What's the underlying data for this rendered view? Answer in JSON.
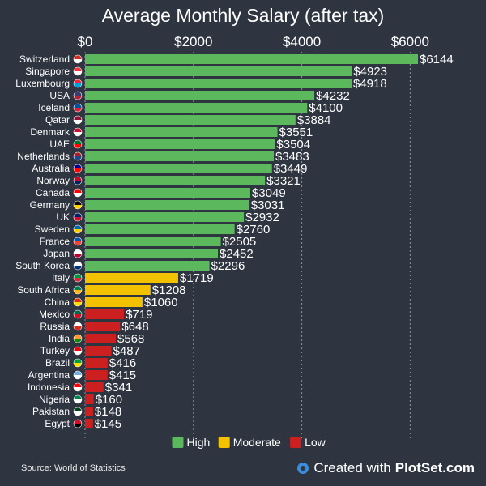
{
  "chart_data": {
    "type": "bar",
    "orientation": "horizontal",
    "title": "Average Monthly Salary (after tax)",
    "xlim": [
      0,
      6144
    ],
    "x_ticks": [
      0,
      2000,
      4000,
      6000
    ],
    "x_tick_labels": [
      "$0",
      "$2000",
      "$4000",
      "$6000"
    ],
    "value_prefix": "$",
    "grid": true,
    "legend_position": "bottom-center",
    "groups": [
      {
        "key": "high",
        "label": "High",
        "color": "#5cb85c"
      },
      {
        "key": "moderate",
        "label": "Moderate",
        "color": "#f2c200"
      },
      {
        "key": "low",
        "label": "Low",
        "color": "#cc1f1f"
      }
    ],
    "categories": [
      "Switzerland",
      "Singapore",
      "Luxembourg",
      "USA",
      "Iceland",
      "Qatar",
      "Denmark",
      "UAE",
      "Netherlands",
      "Australia",
      "Norway",
      "Canada",
      "Germany",
      "UK",
      "Sweden",
      "France",
      "Japan",
      "South Korea",
      "Italy",
      "South Africa",
      "China",
      "Mexico",
      "Russia",
      "India",
      "Turkey",
      "Brazil",
      "Argentina",
      "Indonesia",
      "Nigeria",
      "Pakistan",
      "Egypt"
    ],
    "values": [
      6144,
      4923,
      4918,
      4232,
      4100,
      3884,
      3551,
      3504,
      3483,
      3449,
      3321,
      3049,
      3031,
      2932,
      2760,
      2505,
      2452,
      2296,
      1719,
      1208,
      1060,
      719,
      648,
      568,
      487,
      416,
      415,
      341,
      160,
      148,
      145
    ],
    "group_of": [
      "high",
      "high",
      "high",
      "high",
      "high",
      "high",
      "high",
      "high",
      "high",
      "high",
      "high",
      "high",
      "high",
      "high",
      "high",
      "high",
      "high",
      "high",
      "moderate",
      "moderate",
      "moderate",
      "low",
      "low",
      "low",
      "low",
      "low",
      "low",
      "low",
      "low",
      "low",
      "low"
    ],
    "flag_colors": [
      [
        "#d52b1e",
        "#ffffff"
      ],
      [
        "#ef3340",
        "#ffffff"
      ],
      [
        "#ed2939",
        "#00a1de"
      ],
      [
        "#3c3b6e",
        "#b22234"
      ],
      [
        "#02529c",
        "#dc1e35"
      ],
      [
        "#8a1538",
        "#ffffff"
      ],
      [
        "#c8102e",
        "#ffffff"
      ],
      [
        "#00732f",
        "#ff0000"
      ],
      [
        "#ae1c28",
        "#21468b"
      ],
      [
        "#00008b",
        "#ff0000"
      ],
      [
        "#ba0c2f",
        "#00205b"
      ],
      [
        "#ff0000",
        "#ffffff"
      ],
      [
        "#000000",
        "#ffce00"
      ],
      [
        "#012169",
        "#c8102e"
      ],
      [
        "#006aa7",
        "#fecc00"
      ],
      [
        "#0055a4",
        "#ef4135"
      ],
      [
        "#ffffff",
        "#bc002d"
      ],
      [
        "#ffffff",
        "#003478"
      ],
      [
        "#009246",
        "#ce2b37"
      ],
      [
        "#007a4d",
        "#ffb612"
      ],
      [
        "#de2910",
        "#ffde00"
      ],
      [
        "#006847",
        "#ce1126"
      ],
      [
        "#ffffff",
        "#d52b1e"
      ],
      [
        "#ff9933",
        "#138808"
      ],
      [
        "#e30a17",
        "#ffffff"
      ],
      [
        "#009c3b",
        "#ffdf00"
      ],
      [
        "#74acdf",
        "#ffffff"
      ],
      [
        "#ff0000",
        "#ffffff"
      ],
      [
        "#008751",
        "#ffffff"
      ],
      [
        "#01411c",
        "#ffffff"
      ],
      [
        "#ce1126",
        "#000000"
      ]
    ]
  },
  "footer": {
    "source": "Source: World of Statistics",
    "credit_prefix": "Created with",
    "credit_brand": "PlotSet.com"
  }
}
